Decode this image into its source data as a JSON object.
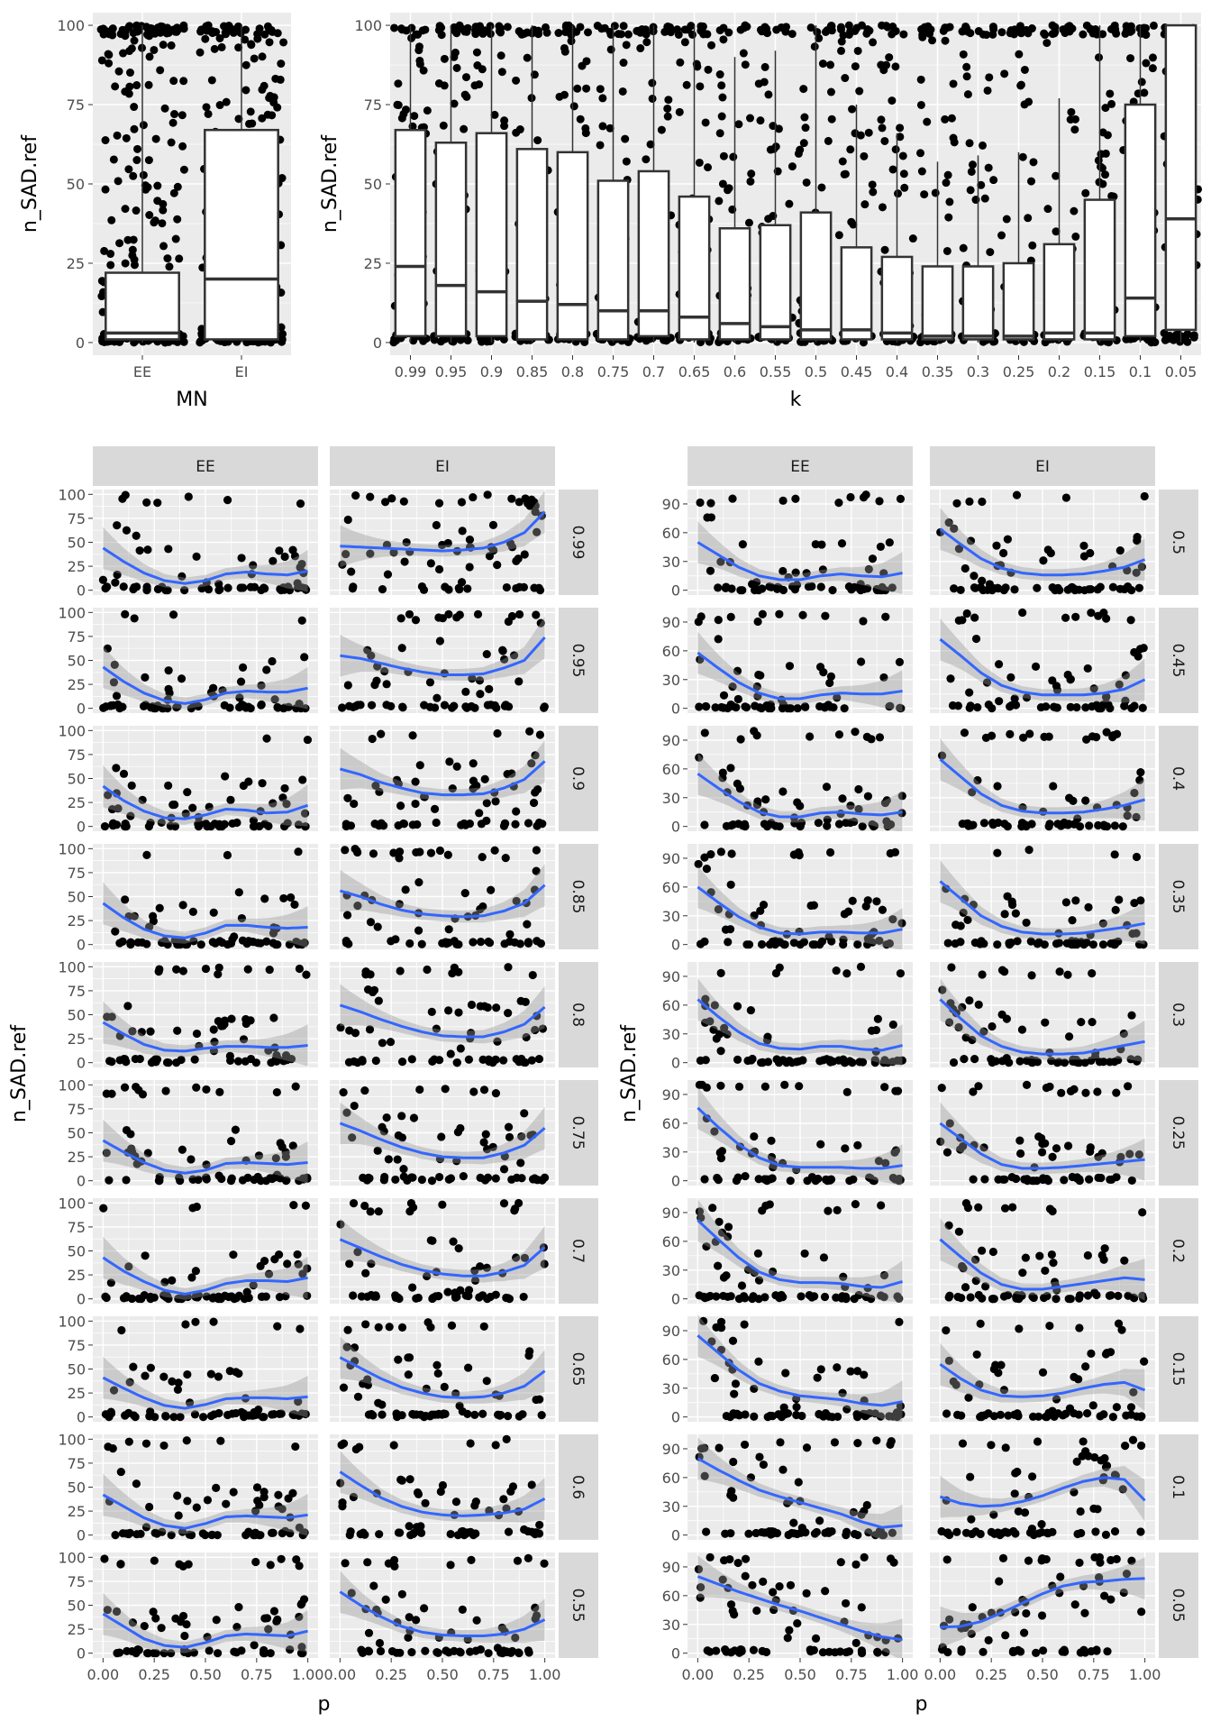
{
  "colors": {
    "panel_bg": "#ebebeb",
    "grid": "#ffffff",
    "strip_bg": "#d9d9d9",
    "points": "#000000",
    "smooth_line": "#3366ff",
    "ribbon": "#999999"
  },
  "chart_data": [
    {
      "type": "box",
      "subtype": "boxplot-with-jitter",
      "xlabel": "MN",
      "ylabel": "n_SAD.ref",
      "categories": [
        "EE",
        "EI"
      ],
      "y_ticks": [
        "0",
        "25",
        "50",
        "75",
        "100"
      ],
      "ylim": [
        -4,
        104
      ],
      "grid": true,
      "boxes": [
        {
          "category": "EE",
          "q1": 1,
          "median": 3,
          "q3": 22,
          "lower": 0,
          "upper": 100
        },
        {
          "category": "EI",
          "q1": 1,
          "median": 20,
          "q3": 67,
          "lower": 0,
          "upper": 100
        }
      ]
    },
    {
      "type": "box",
      "subtype": "boxplot-with-jitter",
      "xlabel": "k",
      "ylabel": "n_SAD.ref",
      "categories": [
        "0.99",
        "0.95",
        "0.9",
        "0.85",
        "0.8",
        "0.75",
        "0.7",
        "0.65",
        "0.6",
        "0.55",
        "0.5",
        "0.45",
        "0.4",
        "0.35",
        "0.3",
        "0.25",
        "0.2",
        "0.15",
        "0.1",
        "0.05"
      ],
      "y_ticks": [
        "0",
        "25",
        "50",
        "75",
        "100"
      ],
      "ylim": [
        -4,
        104
      ],
      "grid": true,
      "boxes": [
        {
          "category": "0.99",
          "q1": 2,
          "median": 24,
          "q3": 67,
          "lower": 0,
          "upper": 100
        },
        {
          "category": "0.95",
          "q1": 2,
          "median": 18,
          "q3": 63,
          "lower": 0,
          "upper": 100
        },
        {
          "category": "0.9",
          "q1": 2,
          "median": 16,
          "q3": 66,
          "lower": 0,
          "upper": 100
        },
        {
          "category": "0.85",
          "q1": 1,
          "median": 13,
          "q3": 61,
          "lower": 0,
          "upper": 100
        },
        {
          "category": "0.8",
          "q1": 1,
          "median": 12,
          "q3": 60,
          "lower": 0,
          "upper": 100
        },
        {
          "category": "0.75",
          "q1": 1,
          "median": 10,
          "q3": 51,
          "lower": 0,
          "upper": 100
        },
        {
          "category": "0.7",
          "q1": 2,
          "median": 10,
          "q3": 54,
          "lower": 0,
          "upper": 100
        },
        {
          "category": "0.65",
          "q1": 1,
          "median": 8,
          "q3": 46,
          "lower": 0,
          "upper": 100
        },
        {
          "category": "0.6",
          "q1": 1,
          "median": 6,
          "q3": 36,
          "lower": 0,
          "upper": 90
        },
        {
          "category": "0.55",
          "q1": 1,
          "median": 5,
          "q3": 37,
          "lower": 0,
          "upper": 92
        },
        {
          "category": "0.5",
          "q1": 1,
          "median": 4,
          "q3": 41,
          "lower": 0,
          "upper": 100
        },
        {
          "category": "0.45",
          "q1": 1,
          "median": 4,
          "q3": 30,
          "lower": 0,
          "upper": 75
        },
        {
          "category": "0.4",
          "q1": 1,
          "median": 3,
          "q3": 27,
          "lower": 0,
          "upper": 66
        },
        {
          "category": "0.35",
          "q1": 1,
          "median": 2,
          "q3": 24,
          "lower": 0,
          "upper": 57
        },
        {
          "category": "0.3",
          "q1": 1,
          "median": 2,
          "q3": 24,
          "lower": 0,
          "upper": 59
        },
        {
          "category": "0.25",
          "q1": 1,
          "median": 2,
          "q3": 25,
          "lower": 0,
          "upper": 60
        },
        {
          "category": "0.2",
          "q1": 1,
          "median": 3,
          "q3": 31,
          "lower": 0,
          "upper": 77
        },
        {
          "category": "0.15",
          "q1": 1,
          "median": 3,
          "q3": 45,
          "lower": 0,
          "upper": 100
        },
        {
          "category": "0.1",
          "q1": 2,
          "median": 14,
          "q3": 75,
          "lower": 0,
          "upper": 100
        },
        {
          "category": "0.05",
          "q1": 4,
          "median": 39,
          "q3": 100,
          "lower": 0,
          "upper": 100
        }
      ]
    },
    {
      "type": "scatter",
      "subtype": "faceted-scatter-with-loess",
      "xlabel": "p",
      "ylabel": "n_SAD.ref",
      "columns": [
        "EE",
        "EI"
      ],
      "rows": [
        "0.99",
        "0.95",
        "0.9",
        "0.85",
        "0.8",
        "0.75",
        "0.7",
        "0.65",
        "0.6",
        "0.55"
      ],
      "x_ticks": [
        "0.00",
        "0.25",
        "0.50",
        "0.75",
        "1.00"
      ],
      "y_ticks": [
        "0",
        "25",
        "50",
        "75",
        "100"
      ],
      "xlim": [
        -0.05,
        1.05
      ],
      "ylim": [
        -5,
        105
      ],
      "grid": true,
      "smooth": {
        "x": [
          0,
          0.1,
          0.2,
          0.3,
          0.4,
          0.5,
          0.6,
          0.7,
          0.8,
          0.9,
          1.0
        ],
        "EE": {
          "0.99": [
            44,
            30,
            18,
            10,
            7,
            10,
            17,
            19,
            17,
            16,
            20
          ],
          "0.95": [
            43,
            28,
            16,
            8,
            5,
            9,
            16,
            18,
            17,
            17,
            21
          ],
          "0.9": [
            42,
            27,
            16,
            9,
            8,
            12,
            18,
            17,
            14,
            15,
            22
          ],
          "0.85": [
            43,
            28,
            16,
            9,
            7,
            12,
            20,
            20,
            18,
            17,
            18
          ],
          "0.8": [
            42,
            30,
            19,
            13,
            12,
            15,
            17,
            17,
            16,
            16,
            18
          ],
          "0.75": [
            42,
            30,
            19,
            11,
            8,
            11,
            18,
            19,
            18,
            17,
            19
          ],
          "0.7": [
            43,
            29,
            18,
            9,
            5,
            9,
            16,
            19,
            19,
            18,
            22
          ],
          "0.65": [
            41,
            30,
            20,
            12,
            9,
            13,
            19,
            20,
            20,
            19,
            21
          ],
          "0.6": [
            42,
            30,
            18,
            10,
            7,
            12,
            19,
            20,
            19,
            18,
            21
          ],
          "0.55": [
            41,
            28,
            15,
            8,
            6,
            11,
            18,
            20,
            19,
            18,
            23
          ]
        },
        "EI": {
          "0.99": [
            46,
            45,
            44,
            43,
            42,
            41,
            42,
            44,
            50,
            60,
            82
          ],
          "0.95": [
            55,
            52,
            47,
            42,
            38,
            35,
            35,
            36,
            42,
            50,
            74
          ],
          "0.9": [
            60,
            54,
            46,
            40,
            35,
            33,
            33,
            34,
            40,
            49,
            68
          ],
          "0.85": [
            56,
            50,
            42,
            36,
            32,
            30,
            29,
            30,
            35,
            43,
            62
          ],
          "0.8": [
            60,
            53,
            45,
            38,
            32,
            28,
            27,
            27,
            32,
            40,
            58
          ],
          "0.75": [
            60,
            52,
            43,
            35,
            29,
            25,
            24,
            24,
            29,
            37,
            55
          ],
          "0.7": [
            62,
            53,
            44,
            36,
            30,
            26,
            24,
            24,
            28,
            35,
            54
          ],
          "0.65": [
            62,
            51,
            40,
            31,
            25,
            21,
            20,
            21,
            25,
            32,
            48
          ],
          "0.6": [
            66,
            52,
            39,
            30,
            24,
            21,
            20,
            21,
            23,
            27,
            38
          ],
          "0.55": [
            64,
            50,
            38,
            28,
            22,
            19,
            18,
            18,
            20,
            25,
            35
          ]
        }
      }
    },
    {
      "type": "scatter",
      "subtype": "faceted-scatter-with-loess",
      "xlabel": "p",
      "ylabel": "n_SAD.ref",
      "columns": [
        "EE",
        "EI"
      ],
      "rows": [
        "0.5",
        "0.45",
        "0.4",
        "0.35",
        "0.3",
        "0.25",
        "0.2",
        "0.15",
        "0.1",
        "0.05"
      ],
      "x_ticks": [
        "0.00",
        "0.25",
        "0.50",
        "0.75",
        "1.00"
      ],
      "y_ticks": [
        "0",
        "30",
        "60",
        "90"
      ],
      "xlim": [
        -0.05,
        1.05
      ],
      "ylim": [
        -5,
        105
      ],
      "grid": true,
      "smooth": {
        "x": [
          0,
          0.1,
          0.2,
          0.3,
          0.4,
          0.5,
          0.6,
          0.7,
          0.8,
          0.9,
          1.0
        ],
        "EE": {
          "0.5": [
            50,
            37,
            24,
            15,
            11,
            11,
            15,
            17,
            15,
            14,
            18
          ],
          "0.45": [
            58,
            42,
            27,
            16,
            10,
            10,
            14,
            16,
            15,
            15,
            18
          ],
          "0.4": [
            55,
            40,
            26,
            15,
            10,
            10,
            14,
            15,
            13,
            12,
            15
          ],
          "0.35": [
            60,
            44,
            29,
            18,
            12,
            11,
            13,
            13,
            12,
            12,
            16
          ],
          "0.3": [
            66,
            48,
            32,
            20,
            15,
            14,
            17,
            17,
            14,
            13,
            18
          ],
          "0.25": [
            76,
            56,
            38,
            24,
            16,
            14,
            14,
            14,
            13,
            13,
            16
          ],
          "0.2": [
            82,
            62,
            43,
            28,
            20,
            17,
            17,
            16,
            13,
            12,
            18
          ],
          "0.15": [
            85,
            67,
            49,
            35,
            27,
            22,
            20,
            18,
            14,
            12,
            16
          ],
          "0.1": [
            80,
            68,
            57,
            47,
            40,
            34,
            28,
            22,
            14,
            8,
            10
          ],
          "0.05": [
            80,
            72,
            64,
            57,
            50,
            44,
            37,
            30,
            23,
            17,
            14
          ]
        },
        "EI": {
          "0.5": [
            64,
            48,
            33,
            23,
            18,
            16,
            16,
            17,
            20,
            24,
            32
          ],
          "0.45": [
            72,
            55,
            37,
            24,
            17,
            14,
            14,
            14,
            16,
            20,
            30
          ],
          "0.4": [
            70,
            52,
            34,
            22,
            16,
            14,
            14,
            15,
            18,
            22,
            28
          ],
          "0.35": [
            66,
            48,
            30,
            19,
            13,
            11,
            11,
            12,
            15,
            18,
            22
          ],
          "0.3": [
            66,
            46,
            28,
            17,
            11,
            9,
            9,
            10,
            14,
            18,
            22
          ],
          "0.25": [
            60,
            44,
            28,
            17,
            13,
            13,
            14,
            16,
            18,
            20,
            22
          ],
          "0.2": [
            62,
            44,
            27,
            15,
            10,
            10,
            13,
            16,
            19,
            22,
            20
          ],
          "0.15": [
            55,
            40,
            28,
            22,
            21,
            22,
            25,
            30,
            34,
            36,
            28
          ],
          "0.1": [
            40,
            33,
            30,
            31,
            35,
            41,
            49,
            56,
            60,
            58,
            36
          ],
          "0.05": [
            27,
            28,
            33,
            42,
            52,
            62,
            70,
            74,
            75,
            77,
            78
          ]
        }
      }
    }
  ]
}
